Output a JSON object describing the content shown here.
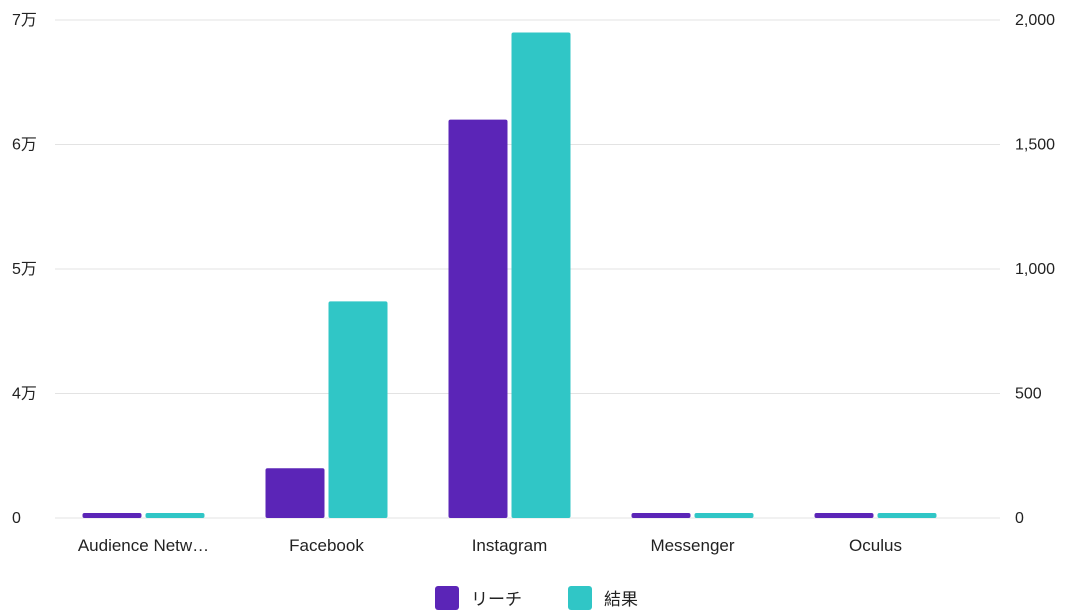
{
  "chart_data": {
    "type": "bar",
    "categories": [
      "Audience Netw…",
      "Facebook",
      "Instagram",
      "Messenger",
      "Oculus"
    ],
    "series": [
      {
        "name": "リーチ",
        "axis": "left",
        "color": "#5B25B7",
        "values": [
          0,
          34000,
          62000,
          0,
          0
        ]
      },
      {
        "name": "結果",
        "axis": "right",
        "color": "#30C6C6",
        "values": [
          0,
          870,
          1950,
          0,
          0
        ]
      }
    ],
    "left_axis": {
      "ticks": [
        "0",
        "4万",
        "5万",
        "6万",
        "7万"
      ]
    },
    "right_axis": {
      "ticks": [
        "0",
        "500",
        "1,000",
        "1,500",
        "2,000"
      ],
      "min": 0,
      "max": 2000
    },
    "legend_position": "bottom",
    "grid": true
  }
}
